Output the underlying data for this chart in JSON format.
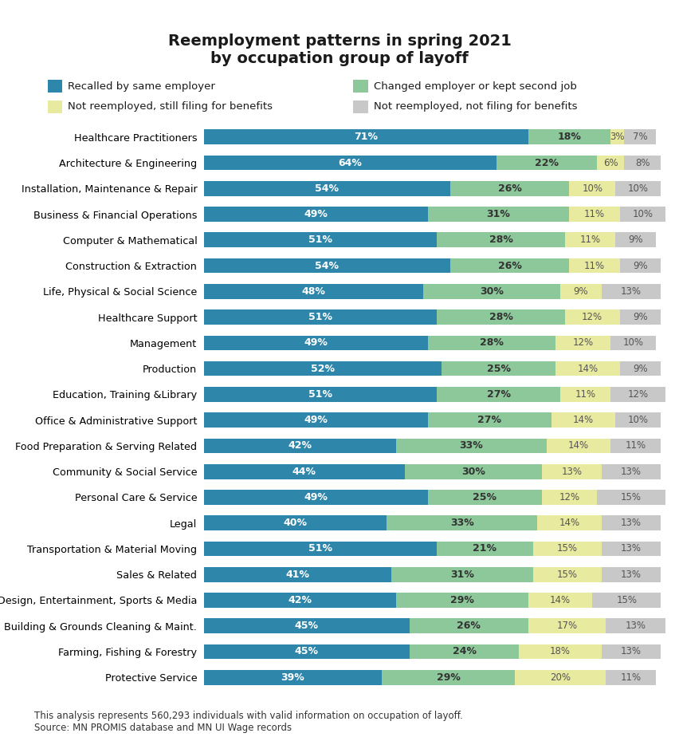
{
  "title": "Reemployment patterns in spring 2021\nby occupation group of layoff",
  "categories": [
    "Healthcare Practitioners",
    "Architecture & Engineering",
    "Installation, Maintenance & Repair",
    "Business & Financial Operations",
    "Computer & Mathematical",
    "Construction & Extraction",
    "Life, Physical & Social Science",
    "Healthcare Support",
    "Management",
    "Production",
    "Education, Training &Library",
    "Office & Administrative Support",
    "Food Preparation & Serving Related",
    "Community & Social Service",
    "Personal Care & Service",
    "Legal",
    "Transportation & Material Moving",
    "Sales & Related",
    "Arts, Design, Entertainment, Sports & Media",
    "Building & Grounds Cleaning & Maint.",
    "Farming, Fishing & Forestry",
    "Protective Service"
  ],
  "recalled": [
    71,
    64,
    54,
    49,
    51,
    54,
    48,
    51,
    49,
    52,
    51,
    49,
    42,
    44,
    49,
    40,
    51,
    41,
    42,
    45,
    45,
    39
  ],
  "changed": [
    18,
    22,
    26,
    31,
    28,
    26,
    30,
    28,
    28,
    25,
    27,
    27,
    33,
    30,
    25,
    33,
    21,
    31,
    29,
    26,
    24,
    29
  ],
  "not_reemployed_filing": [
    3,
    6,
    10,
    11,
    11,
    11,
    9,
    12,
    12,
    14,
    11,
    14,
    14,
    13,
    12,
    14,
    15,
    15,
    14,
    17,
    18,
    20
  ],
  "not_reemployed_not_filing": [
    7,
    8,
    10,
    10,
    9,
    9,
    13,
    9,
    10,
    9,
    12,
    10,
    11,
    13,
    15,
    13,
    13,
    13,
    15,
    13,
    13,
    11
  ],
  "color_recalled": "#2E86AB",
  "color_changed": "#8DC89B",
  "color_filing": "#E8EAA0",
  "color_not_filing": "#C8C8C8",
  "legend_labels": [
    "Recalled by same employer",
    "Changed employer or kept second job",
    "Not reemployed, still filing for benefits",
    "Not reemployed, not filing for benefits"
  ],
  "footnote": "This analysis represents 560,293 individuals with valid information on occupation of layoff.\nSource: MN PROMIS database and MN UI Wage records",
  "bg_color": "#FFFFFF"
}
